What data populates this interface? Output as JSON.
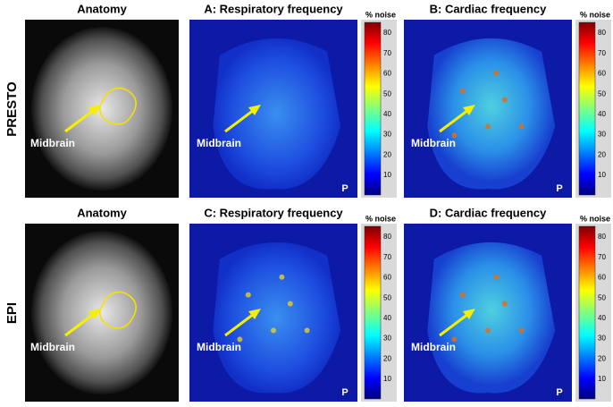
{
  "rows": [
    {
      "label": "PRESTO",
      "panels": [
        {
          "title": "Anatomy",
          "annotation": "Midbrain"
        },
        {
          "title": "A: Respiratory frequency",
          "annotation": "Midbrain",
          "corner": "P",
          "colorbar": {
            "label": "% noise",
            "ticks": [
              10,
              20,
              30,
              40,
              50,
              60,
              70,
              80
            ]
          }
        },
        {
          "title": "B: Cardiac frequency",
          "annotation": "Midbrain",
          "corner": "P",
          "colorbar": {
            "label": "% noise",
            "ticks": [
              10,
              20,
              30,
              40,
              50,
              60,
              70,
              80
            ]
          }
        }
      ]
    },
    {
      "label": "EPI",
      "panels": [
        {
          "title": "Anatomy",
          "annotation": "Midbrain"
        },
        {
          "title": "C: Respiratory frequency",
          "annotation": "Midbrain",
          "corner": "P",
          "colorbar": {
            "label": "% noise",
            "ticks": [
              10,
              20,
              30,
              40,
              50,
              60,
              70,
              80
            ]
          }
        },
        {
          "title": "D: Cardiac frequency",
          "annotation": "Midbrain",
          "corner": "P",
          "colorbar": {
            "label": "% noise",
            "ticks": [
              10,
              20,
              30,
              40,
              50,
              60,
              70,
              80
            ]
          }
        }
      ]
    }
  ]
}
